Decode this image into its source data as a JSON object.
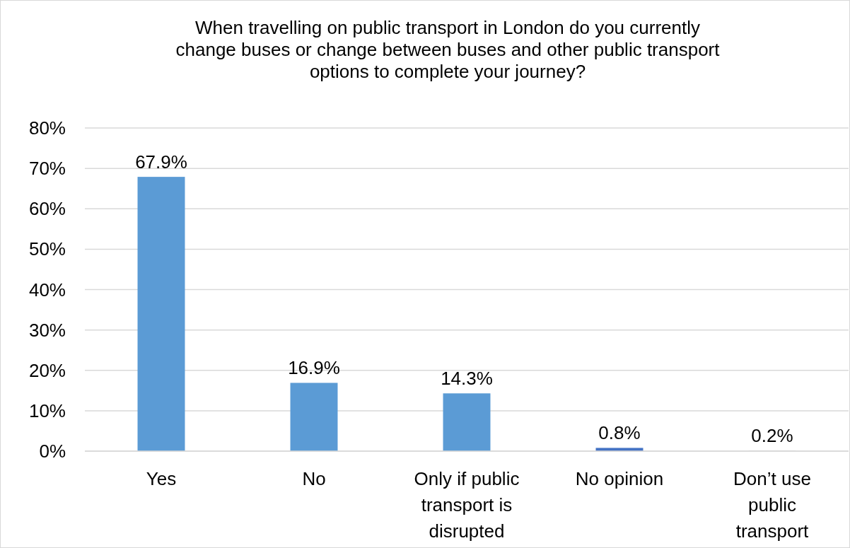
{
  "chart_data": {
    "type": "bar",
    "title": "When travelling on public transport in London do you currently change buses or change between buses and other public transport options to complete your journey?",
    "categories": [
      "Yes",
      "No",
      "Only if public transport is disrupted",
      "No opinion",
      "Don’t use public transport"
    ],
    "values": [
      67.9,
      16.9,
      14.3,
      0.8,
      0.2
    ],
    "colors": [
      "#5b9bd5",
      "#5b9bd5",
      "#5b9bd5",
      "#4472c4",
      "#d9d9d9"
    ],
    "value_labels": [
      "67.9%",
      "16.9%",
      "14.3%",
      "0.8%",
      "0.2%"
    ],
    "ylim": [
      0,
      80
    ],
    "yticks": [
      {
        "value": 0,
        "label": "0%"
      },
      {
        "value": 10,
        "label": "10%"
      },
      {
        "value": 20,
        "label": "20%"
      },
      {
        "value": 30,
        "label": "30%"
      },
      {
        "value": 40,
        "label": "40%"
      },
      {
        "value": 50,
        "label": "50%"
      },
      {
        "value": 60,
        "label": "60%"
      },
      {
        "value": 70,
        "label": "70%"
      },
      {
        "value": 80,
        "label": "80%"
      }
    ],
    "grid": true
  }
}
